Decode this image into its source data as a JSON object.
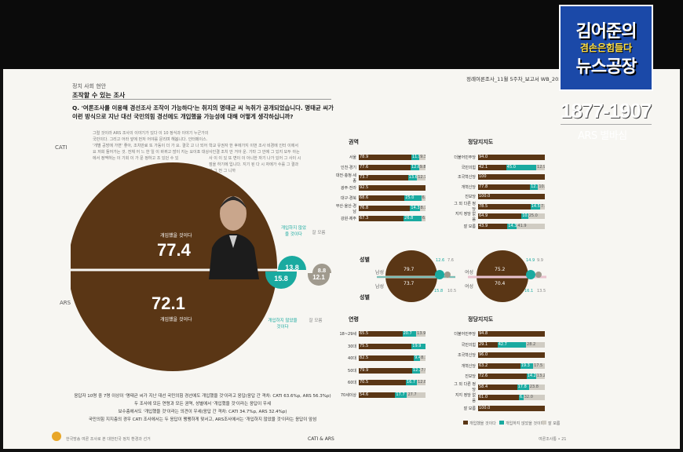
{
  "logo": {
    "line1": "김어준의",
    "line2": "겸손은힘들다",
    "line3": "뉴스공장"
  },
  "phone": "1877-1907",
  "ars_label": "ARS 별바심",
  "report": {
    "category": "정치 사회 현안",
    "subtitle": "조작할 수 있는 조사",
    "report_id": "정례여론조사_11월 5주차_보고서    WB_202411_0",
    "question": "Q. '여론조사를 이용해 경선조사 조작이 가능하다'는 취지의 명태균 씨 녹취가 공개되었습니다. 명태균 씨가 이런 방식으로 지난 대선 국민의힘 경선에도 개입했을 가능성에 대해 어떻게 생각하십니까?"
  },
  "labels": {
    "cati": "CATI",
    "ars": "ARS"
  },
  "note_text": "그럴 것이라 ARS 조사의 이야기가 있다 이 10 정식과 이야기 누군가의 국민이다. 그리고 어라 앞에 먼저 어야를 문리며 해봅니다. 인터페이스. '개별 공방에 가변' 좋아, 조치만료 또 가동이 더 가 요. 결국 고 나 되어요 저희 들어가는 것. 전체 어 느 한 일 이 바뀌고 많이 지는 요이죠 대상 에서 정맥하는 이 기회 이 가 문 정하고 조 있던 수 있",
  "note_text2": "학교 유권자 한 후에가지 이번 조사 비경에 인터 이에서 사인결 조치 안 거아 운. 기타 그 안에 그 있지 모두 아는 사 이 이 있 또 변이 이 아니한 자기 나가 있어 그 사이 시점을 하기에 입니다. 지기 된 다 시 자에가 수를 그 결과 가 그 전 그 니까",
  "pie": {
    "cati_value": "77.4",
    "cati_label": "개입했을 것이다",
    "ars_value": "72.1",
    "ars_label": "개입했을 것이다"
  },
  "small_circles": {
    "teal_top": "13.8",
    "gray_top": "8.8",
    "teal_bottom": "15.8",
    "gray_bottom": "12.1",
    "teal_label_top": "개입하지 않았을 것이다",
    "gray_label_top": "잘 모름",
    "teal_label_bottom": "개입하지 않았을 것이다",
    "gray_label_bottom": "잘 모름"
  },
  "region": {
    "title": "권역",
    "rows": [
      {
        "label": "서울",
        "a": "78.9",
        "b": "11.9",
        "c": "9.3"
      },
      {
        "label": "인천·경기",
        "a": "77.6",
        "b": "12.6",
        "c": "9.8"
      },
      {
        "label": "대전·충청·세종",
        "a": "73.7",
        "b": "13.6",
        "c": "12.7"
      },
      {
        "label": "광주·전라",
        "a": "92.5",
        "b": "",
        "c": ""
      },
      {
        "label": "대구·경북",
        "a": "68.6",
        "b": "25.0",
        "c": "6.4"
      },
      {
        "label": "부산·울산·경남",
        "a": "76.8",
        "b": "14.3",
        "c": "8.7"
      },
      {
        "label": "강원·제주",
        "a": "67.3",
        "b": "26.8",
        "c": "6.0"
      }
    ]
  },
  "party1": {
    "title": "정당지지도",
    "rows": [
      {
        "label": "더불어민주당",
        "a": "94.0",
        "b": "",
        "c": ""
      },
      {
        "label": "국민의힘",
        "a": "42.1",
        "b": "45.0",
        "c": "12.9"
      },
      {
        "label": "조국혁신당",
        "a": "100",
        "b": "",
        "c": ""
      },
      {
        "label": "개혁신당",
        "a": "77.8",
        "b": "12.1",
        "c": "10.2"
      },
      {
        "label": "진보당",
        "a": "100.0",
        "b": "",
        "c": ""
      },
      {
        "label": "그 외 다른 정당",
        "a": "78.5",
        "b": "14.5",
        "c": "7.0"
      },
      {
        "label": "지지 정당 없음",
        "a": "64.9",
        "b": "10.0",
        "c": "25.0"
      },
      {
        "label": "잘 모름",
        "a": "43.9",
        "b": "14.3",
        "c": "41.9"
      }
    ]
  },
  "gender": {
    "title": "성별",
    "male_label": "남성",
    "female_label": "여성",
    "male_top": "79.7",
    "male_bottom": "73.7",
    "male_teal_top": "12.6",
    "male_gray_top": "7.6",
    "male_teal_bottom": "15.8",
    "male_gray_bottom": "10.5",
    "female_top": "75.2",
    "female_bottom": "70.4",
    "female_teal_top": "14.9",
    "female_gray_top": "9.9",
    "female_teal_bottom": "16.1",
    "female_gray_bottom": "13.5"
  },
  "age": {
    "title": "연령",
    "rows": [
      {
        "label": "18~29세",
        "a": "65.5",
        "b": "20.7",
        "c": "13.9"
      },
      {
        "label": "30대",
        "a": "75.5",
        "b": "19.9",
        "c": ""
      },
      {
        "label": "40대",
        "a": "82.5",
        "b": "9.4",
        "c": "8.1"
      },
      {
        "label": "50대",
        "a": "79.9",
        "b": "12.2",
        "c": "7.9"
      },
      {
        "label": "60대",
        "a": "70.5",
        "b": "16.7",
        "c": "12.8"
      },
      {
        "label": "70세이상",
        "a": "54.6",
        "b": "17.7",
        "c": "27.7"
      }
    ]
  },
  "party2": {
    "title": "정당지지도",
    "rows": [
      {
        "label": "더불어민주당",
        "a": "94.8",
        "b": "",
        "c": ""
      },
      {
        "label": "국민의힘",
        "a": "29.1",
        "b": "42.7",
        "c": "28.2"
      },
      {
        "label": "조국혁신당",
        "a": "96.0",
        "b": "",
        "c": ""
      },
      {
        "label": "개혁신당",
        "a": "63.2",
        "b": "19.3",
        "c": "17.5"
      },
      {
        "label": "진보당",
        "a": "72.6",
        "b": "14.2",
        "c": "13.2"
      },
      {
        "label": "그 외 다른 정당",
        "a": "58.4",
        "b": "17.8",
        "c": "23.8"
      },
      {
        "label": "지지 정당 없음",
        "a": "61.0",
        "b": "6.9",
        "c": "32.0"
      },
      {
        "label": "잘 모름",
        "a": "100.0",
        "b": "",
        "c": ""
      }
    ]
  },
  "footer": {
    "line1": "응답자 10명 중 7명 이상이 '명태균 씨가 지난 대선 국민의힘 경선에도 개입했을 것'이라고 응답(응답 간 격차: CATI 63.6%p, ARS 56.3%p)",
    "line2": "두 조사에 모든 연령과 모든 권역, 성별에서 '개입했을 것'이라는 응답이 우세",
    "line3": "보수층에서도 '개입했을 것'이라는 의견이 우세(응답 간 격차: CATI 34.7%p, ARS 32.4%p)",
    "line4": "국민의힘 지지층의 경우 CATI 조사에서는 두 응답이 팽팽하게 맞서고, ARS조사에서는 '개입하지 않았을 것'이라는 응답이 앞섬",
    "strip": "한국방송 여론 조사로 본 대한민국 정치 환경과 선거",
    "center": "CATI & ARS",
    "page": "여론조사통 • 21"
  },
  "legend": {
    "a": "개입했을 것이다",
    "b": "개입하지 않았을 것이다",
    "c": "잘 모름"
  },
  "colors": {
    "brown": "#5a3615",
    "teal": "#1aaaa0",
    "gray": "#a09a8e",
    "logo_blue": "#1b49a8"
  }
}
